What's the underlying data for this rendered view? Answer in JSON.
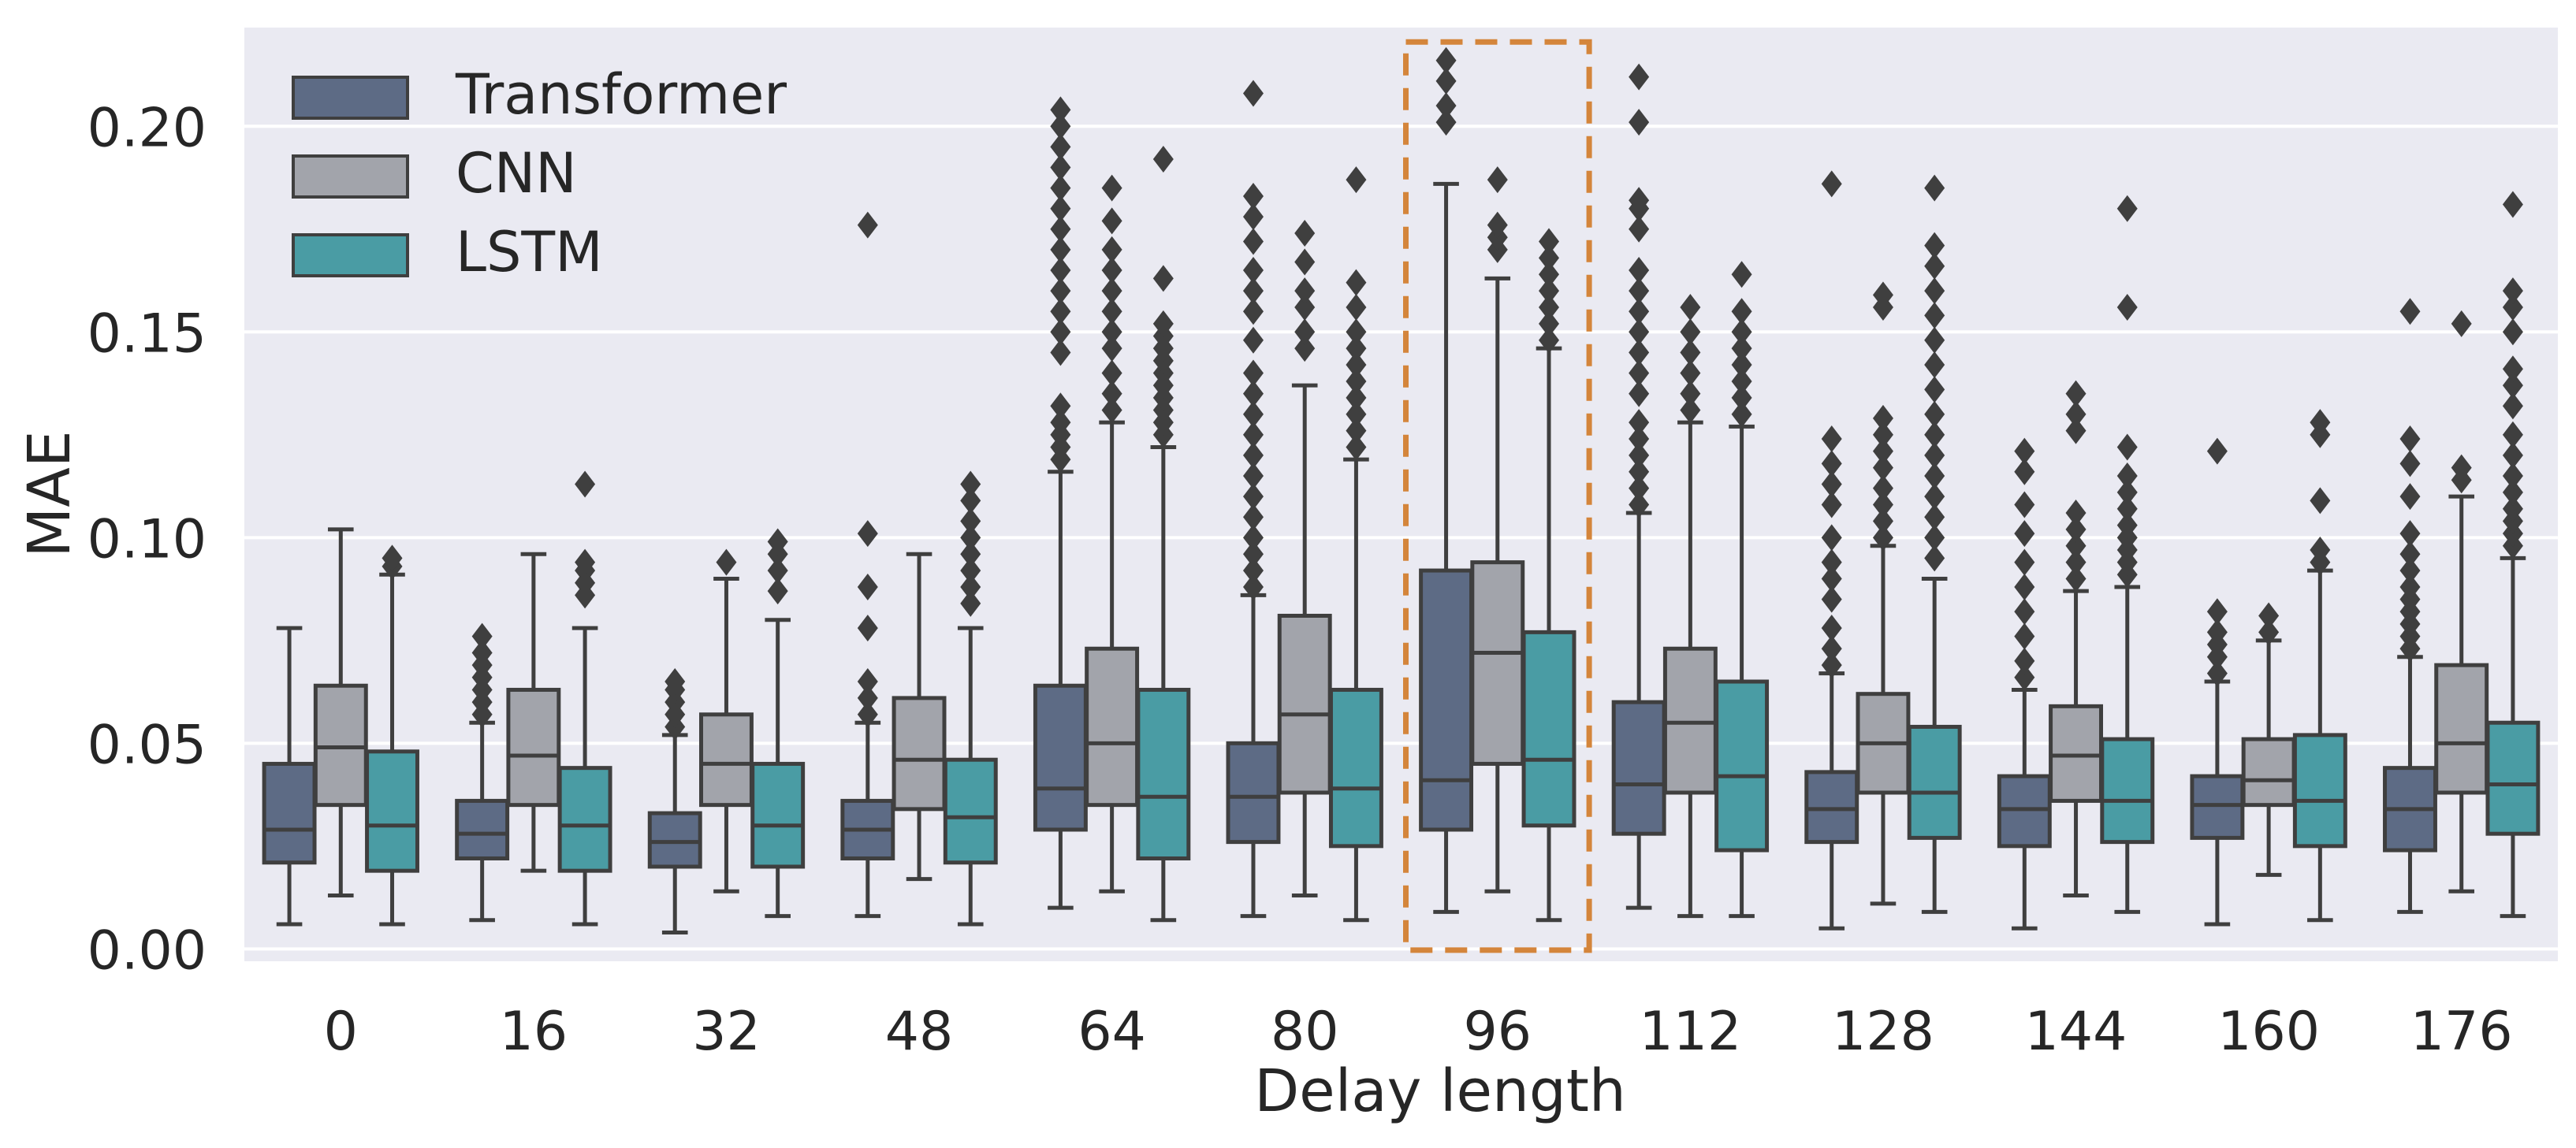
{
  "chart_data": {
    "type": "box",
    "title": "",
    "xlabel": "Delay length",
    "ylabel": "MAE",
    "ylim": [
      -0.003,
      0.224
    ],
    "yticks": [
      "0.00",
      "0.05",
      "0.10",
      "0.15",
      "0.20"
    ],
    "grid": true,
    "legend_position": "top-left",
    "highlighted_category": "96",
    "categories": [
      "0",
      "16",
      "32",
      "48",
      "64",
      "80",
      "96",
      "112",
      "128",
      "144",
      "160",
      "176"
    ],
    "series": [
      {
        "name": "Transformer",
        "color": "#5d6b85",
        "boxes": [
          {
            "whislo": 0.006,
            "q1": 0.021,
            "med": 0.029,
            "q3": 0.045,
            "whishi": 0.078,
            "fliers": []
          },
          {
            "whislo": 0.007,
            "q1": 0.022,
            "med": 0.028,
            "q3": 0.036,
            "whishi": 0.055,
            "fliers": [
              0.057,
              0.06,
              0.063,
              0.066,
              0.069,
              0.072,
              0.076
            ]
          },
          {
            "whislo": 0.004,
            "q1": 0.02,
            "med": 0.026,
            "q3": 0.033,
            "whishi": 0.052,
            "fliers": [
              0.054,
              0.057,
              0.06,
              0.063,
              0.065
            ]
          },
          {
            "whislo": 0.008,
            "q1": 0.022,
            "med": 0.029,
            "q3": 0.036,
            "whishi": 0.055,
            "fliers": [
              0.057,
              0.061,
              0.065,
              0.078,
              0.088,
              0.101,
              0.176
            ]
          },
          {
            "whislo": 0.01,
            "q1": 0.029,
            "med": 0.039,
            "q3": 0.064,
            "whishi": 0.116,
            "fliers": [
              0.119,
              0.122,
              0.125,
              0.128,
              0.132,
              0.145,
              0.15,
              0.155,
              0.16,
              0.165,
              0.17,
              0.175,
              0.18,
              0.185,
              0.19,
              0.195,
              0.2,
              0.204
            ]
          },
          {
            "whislo": 0.008,
            "q1": 0.026,
            "med": 0.037,
            "q3": 0.05,
            "whishi": 0.086,
            "fliers": [
              0.088,
              0.092,
              0.096,
              0.1,
              0.105,
              0.11,
              0.115,
              0.12,
              0.125,
              0.13,
              0.135,
              0.14,
              0.148,
              0.155,
              0.16,
              0.165,
              0.172,
              0.178,
              0.183,
              0.208
            ]
          },
          {
            "whislo": 0.009,
            "q1": 0.029,
            "med": 0.041,
            "q3": 0.092,
            "whishi": 0.186,
            "fliers": [
              0.201,
              0.205,
              0.211,
              0.216
            ]
          },
          {
            "whislo": 0.01,
            "q1": 0.028,
            "med": 0.04,
            "q3": 0.06,
            "whishi": 0.106,
            "fliers": [
              0.108,
              0.112,
              0.116,
              0.12,
              0.124,
              0.128,
              0.135,
              0.14,
              0.145,
              0.15,
              0.155,
              0.16,
              0.165,
              0.175,
              0.18,
              0.182,
              0.201,
              0.212
            ]
          },
          {
            "whislo": 0.005,
            "q1": 0.026,
            "med": 0.034,
            "q3": 0.043,
            "whishi": 0.067,
            "fliers": [
              0.069,
              0.073,
              0.078,
              0.085,
              0.09,
              0.094,
              0.1,
              0.108,
              0.113,
              0.118,
              0.124,
              0.186
            ]
          },
          {
            "whislo": 0.005,
            "q1": 0.025,
            "med": 0.034,
            "q3": 0.042,
            "whishi": 0.063,
            "fliers": [
              0.066,
              0.07,
              0.076,
              0.082,
              0.088,
              0.094,
              0.101,
              0.108,
              0.116,
              0.121
            ]
          },
          {
            "whislo": 0.006,
            "q1": 0.027,
            "med": 0.035,
            "q3": 0.042,
            "whishi": 0.065,
            "fliers": [
              0.067,
              0.071,
              0.074,
              0.077,
              0.082,
              0.121
            ]
          },
          {
            "whislo": 0.009,
            "q1": 0.024,
            "med": 0.034,
            "q3": 0.044,
            "whishi": 0.071,
            "fliers": [
              0.073,
              0.076,
              0.079,
              0.082,
              0.085,
              0.088,
              0.092,
              0.096,
              0.101,
              0.11,
              0.118,
              0.124,
              0.155
            ]
          }
        ]
      },
      {
        "name": "CNN",
        "color": "#a2a4ab",
        "boxes": [
          {
            "whislo": 0.013,
            "q1": 0.035,
            "med": 0.049,
            "q3": 0.064,
            "whishi": 0.102,
            "fliers": []
          },
          {
            "whislo": 0.019,
            "q1": 0.035,
            "med": 0.047,
            "q3": 0.063,
            "whishi": 0.096,
            "fliers": []
          },
          {
            "whislo": 0.014,
            "q1": 0.035,
            "med": 0.045,
            "q3": 0.057,
            "whishi": 0.09,
            "fliers": [
              0.094
            ]
          },
          {
            "whislo": 0.017,
            "q1": 0.034,
            "med": 0.046,
            "q3": 0.061,
            "whishi": 0.096,
            "fliers": []
          },
          {
            "whislo": 0.014,
            "q1": 0.035,
            "med": 0.05,
            "q3": 0.073,
            "whishi": 0.128,
            "fliers": [
              0.131,
              0.135,
              0.14,
              0.146,
              0.15,
              0.155,
              0.16,
              0.165,
              0.17,
              0.177,
              0.185
            ]
          },
          {
            "whislo": 0.013,
            "q1": 0.038,
            "med": 0.057,
            "q3": 0.081,
            "whishi": 0.137,
            "fliers": [
              0.146,
              0.15,
              0.156,
              0.16,
              0.167,
              0.174
            ]
          },
          {
            "whislo": 0.014,
            "q1": 0.045,
            "med": 0.072,
            "q3": 0.094,
            "whishi": 0.163,
            "fliers": [
              0.17,
              0.173,
              0.176,
              0.187
            ]
          },
          {
            "whislo": 0.008,
            "q1": 0.038,
            "med": 0.055,
            "q3": 0.073,
            "whishi": 0.128,
            "fliers": [
              0.131,
              0.135,
              0.14,
              0.145,
              0.15,
              0.156
            ]
          },
          {
            "whislo": 0.011,
            "q1": 0.038,
            "med": 0.05,
            "q3": 0.062,
            "whishi": 0.098,
            "fliers": [
              0.1,
              0.104,
              0.108,
              0.112,
              0.117,
              0.121,
              0.125,
              0.129,
              0.156,
              0.159
            ]
          },
          {
            "whislo": 0.013,
            "q1": 0.036,
            "med": 0.047,
            "q3": 0.059,
            "whishi": 0.087,
            "fliers": [
              0.09,
              0.094,
              0.098,
              0.102,
              0.106,
              0.126,
              0.13,
              0.135
            ]
          },
          {
            "whislo": 0.018,
            "q1": 0.035,
            "med": 0.041,
            "q3": 0.051,
            "whishi": 0.075,
            "fliers": [
              0.077,
              0.081
            ]
          },
          {
            "whislo": 0.014,
            "q1": 0.038,
            "med": 0.05,
            "q3": 0.069,
            "whishi": 0.11,
            "fliers": [
              0.114,
              0.117,
              0.152
            ]
          }
        ]
      },
      {
        "name": "LSTM",
        "color": "#4a9ca4",
        "boxes": [
          {
            "whislo": 0.006,
            "q1": 0.019,
            "med": 0.03,
            "q3": 0.048,
            "whishi": 0.091,
            "fliers": [
              0.093,
              0.095
            ]
          },
          {
            "whislo": 0.006,
            "q1": 0.019,
            "med": 0.03,
            "q3": 0.044,
            "whishi": 0.078,
            "fliers": [
              0.086,
              0.089,
              0.092,
              0.094,
              0.113
            ]
          },
          {
            "whislo": 0.008,
            "q1": 0.02,
            "med": 0.03,
            "q3": 0.045,
            "whishi": 0.08,
            "fliers": [
              0.087,
              0.092,
              0.096,
              0.099
            ]
          },
          {
            "whislo": 0.006,
            "q1": 0.021,
            "med": 0.032,
            "q3": 0.046,
            "whishi": 0.078,
            "fliers": [
              0.084,
              0.088,
              0.092,
              0.096,
              0.1,
              0.104,
              0.109,
              0.113
            ]
          },
          {
            "whislo": 0.007,
            "q1": 0.022,
            "med": 0.037,
            "q3": 0.063,
            "whishi": 0.122,
            "fliers": [
              0.125,
              0.128,
              0.131,
              0.134,
              0.137,
              0.14,
              0.143,
              0.146,
              0.149,
              0.152,
              0.163,
              0.192
            ]
          },
          {
            "whislo": 0.007,
            "q1": 0.025,
            "med": 0.039,
            "q3": 0.063,
            "whishi": 0.119,
            "fliers": [
              0.122,
              0.126,
              0.13,
              0.134,
              0.138,
              0.142,
              0.146,
              0.15,
              0.156,
              0.162,
              0.187
            ]
          },
          {
            "whislo": 0.007,
            "q1": 0.03,
            "med": 0.046,
            "q3": 0.077,
            "whishi": 0.146,
            "fliers": [
              0.148,
              0.152,
              0.156,
              0.16,
              0.164,
              0.168,
              0.172
            ]
          },
          {
            "whislo": 0.008,
            "q1": 0.024,
            "med": 0.042,
            "q3": 0.065,
            "whishi": 0.127,
            "fliers": [
              0.13,
              0.134,
              0.138,
              0.142,
              0.146,
              0.15,
              0.155,
              0.164
            ]
          },
          {
            "whislo": 0.009,
            "q1": 0.027,
            "med": 0.038,
            "q3": 0.054,
            "whishi": 0.09,
            "fliers": [
              0.095,
              0.1,
              0.105,
              0.11,
              0.115,
              0.12,
              0.125,
              0.13,
              0.136,
              0.142,
              0.148,
              0.154,
              0.16,
              0.166,
              0.171,
              0.185
            ]
          },
          {
            "whislo": 0.009,
            "q1": 0.026,
            "med": 0.036,
            "q3": 0.051,
            "whishi": 0.088,
            "fliers": [
              0.091,
              0.094,
              0.097,
              0.1,
              0.103,
              0.107,
              0.111,
              0.115,
              0.122,
              0.156,
              0.18
            ]
          },
          {
            "whislo": 0.007,
            "q1": 0.025,
            "med": 0.036,
            "q3": 0.052,
            "whishi": 0.092,
            "fliers": [
              0.094,
              0.097,
              0.109,
              0.125,
              0.128
            ]
          },
          {
            "whislo": 0.008,
            "q1": 0.028,
            "med": 0.04,
            "q3": 0.055,
            "whishi": 0.095,
            "fliers": [
              0.098,
              0.101,
              0.104,
              0.107,
              0.111,
              0.115,
              0.12,
              0.125,
              0.132,
              0.137,
              0.141,
              0.15,
              0.156,
              0.16,
              0.181
            ]
          }
        ]
      }
    ]
  }
}
